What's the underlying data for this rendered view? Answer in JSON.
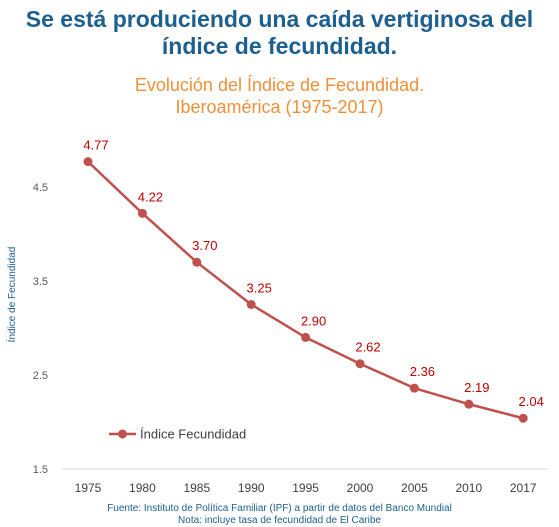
{
  "header": {
    "headline_line1": "Se está produciendo una caída vertiginosa del",
    "headline_line2": "índice de fecundidad.",
    "subtitle_line1": "Evolución del Índice de Fecundidad.",
    "subtitle_line2": "Iberoamérica  (1975-2017)"
  },
  "footer": {
    "source": "Fuente: Instituto de Política Familiar (IPF) a partir de datos del Banco Mundial",
    "note": "Nota: incluye tasa de fecundidad de El Caribe"
  },
  "colors": {
    "headline": "#1d5f8f",
    "subtitle": "#f0903a",
    "series": "#c0504d",
    "data_label": "#c00000",
    "grid": "#d9d9d9"
  },
  "chart_data": {
    "type": "line",
    "ylabel": "Índice de Fecundidad",
    "xlabel": "",
    "ylim": [
      1.5,
      5.0
    ],
    "yticks": [
      1.5,
      2.5,
      3.5,
      4.5
    ],
    "ytick_labels": [
      "1.5",
      "2.5",
      "3.5",
      "4.5"
    ],
    "categories": [
      "1975",
      "1980",
      "1985",
      "1990",
      "1995",
      "2000",
      "2005",
      "2010",
      "2017"
    ],
    "series": [
      {
        "name": "Índice Fecundidad",
        "values": [
          4.77,
          4.22,
          3.7,
          3.25,
          2.9,
          2.62,
          2.36,
          2.19,
          2.04
        ],
        "labels": [
          "4.77",
          "4.22",
          "3.70",
          "3.25",
          "2.90",
          "2.62",
          "2.36",
          "2.19",
          "2.04"
        ]
      }
    ],
    "grid": false,
    "legend_position": "bottom-left"
  }
}
